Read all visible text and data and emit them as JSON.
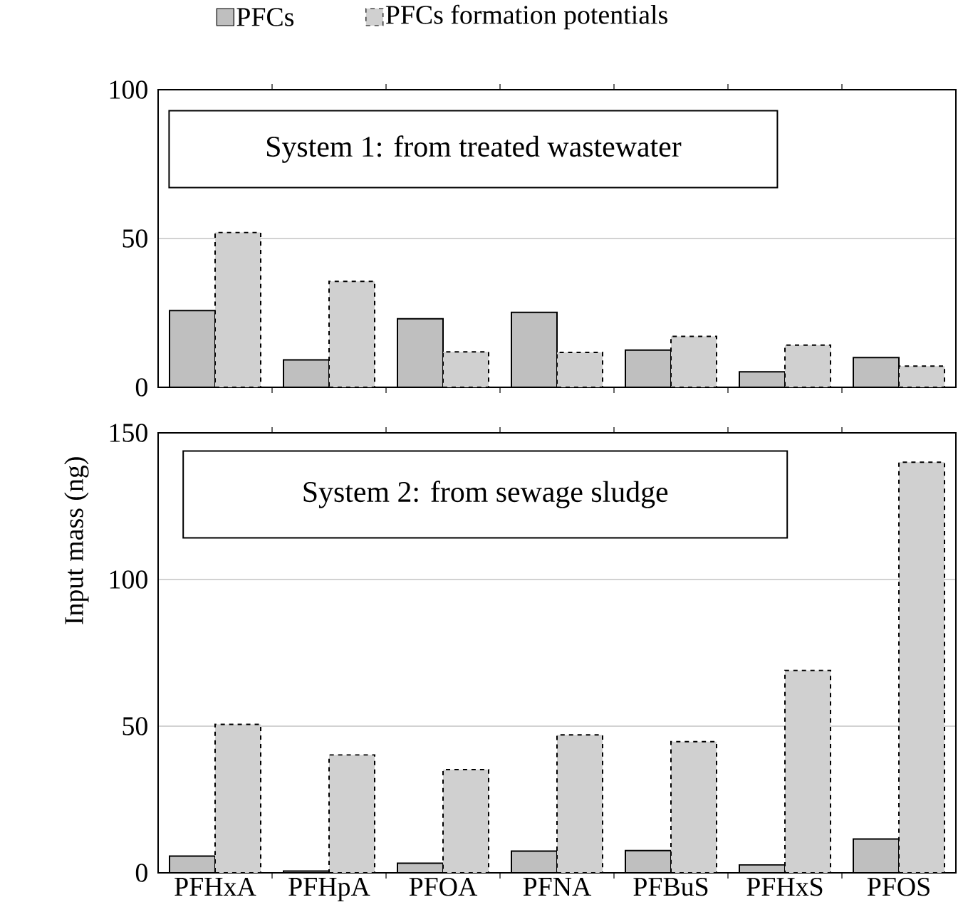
{
  "chart_data": [
    {
      "type": "bar",
      "categories": [
        null,
        null,
        null,
        null,
        null,
        null,
        null
      ],
      "series": [
        {
          "name": "PFCs",
          "color": "#bfbfbf",
          "values": [
            25.8,
            9.2,
            23,
            25.2,
            12.5,
            5.2,
            10
          ]
        },
        {
          "name": "PFCs formation potentials",
          "color": "#d0d0d0",
          "line_style": "dashed",
          "values": [
            52,
            35.6,
            11.9,
            11.7,
            17.1,
            14.2,
            7.1
          ]
        }
      ],
      "ylim": [
        0,
        100
      ],
      "yticks": [
        0,
        50,
        100
      ],
      "grid": "y",
      "legend": "top",
      "tick_labels": "y",
      "annotations": [
        "System 1: from treated wastewater"
      ]
    },
    {
      "type": "bar",
      "categories": [
        "PFHxA",
        "PFHpA",
        "PFOA",
        "PFNA",
        "PFBuS",
        "PFHxS",
        "PFOS"
      ],
      "series": [
        {
          "color": "#bfbfbf",
          "values": [
            5.7,
            0.6,
            3.3,
            7.4,
            7.6,
            2.7,
            11.5
          ]
        },
        {
          "color": "#d0d0d0",
          "line_style": "dashed",
          "values": [
            50.6,
            40.2,
            35.2,
            47,
            44.7,
            69,
            140
          ]
        }
      ],
      "ylim": [
        0,
        150
      ],
      "yticks": [
        0,
        50,
        100,
        150
      ],
      "grid": "y",
      "ylabel": "Input mass (ng)",
      "annotations": [
        "System 2: from sewage sludge"
      ]
    }
  ]
}
